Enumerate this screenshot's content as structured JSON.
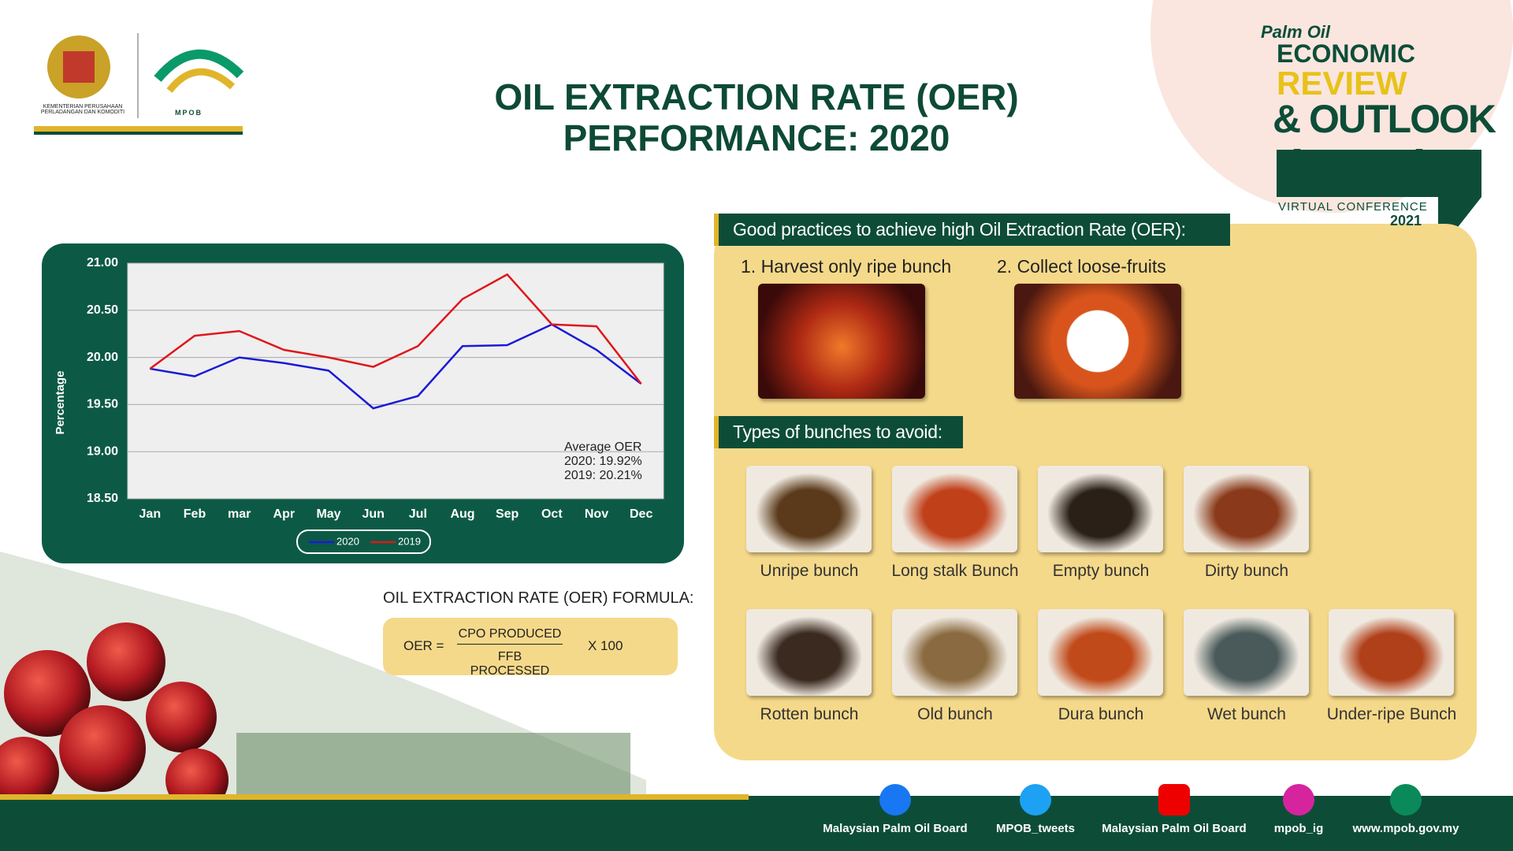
{
  "header": {
    "ministry": "KEMENTERIAN PERUSAHAAN PERLADANGAN DAN KOMODITI",
    "mpob": "MPOB",
    "title": [
      "OIL EXTRACTION RATE (OER)",
      "PERFORMANCE: 2020"
    ]
  },
  "conference": {
    "tagline": "Palm Oil",
    "line1": "ECONOMIC",
    "line2": "REVIEW",
    "line3": "& OUTLOOK",
    "line4": "(R&O)",
    "line5": "VIRTUAL CONFERENCE",
    "year": "2021"
  },
  "chart_data": {
    "type": "line",
    "y_label": "Percentage",
    "categories": [
      "Jan",
      "Feb",
      "mar",
      "Apr",
      "May",
      "Jun",
      "Jul",
      "Aug",
      "Sep",
      "Oct",
      "Nov",
      "Dec"
    ],
    "series": [
      {
        "name": "2020",
        "color": "#1a1ad8",
        "values": [
          19.88,
          19.8,
          20.0,
          19.94,
          19.86,
          19.46,
          19.59,
          20.12,
          20.13,
          20.35,
          20.08,
          19.72
        ]
      },
      {
        "name": "2019",
        "color": "#e0161b",
        "values": [
          19.88,
          20.23,
          20.28,
          20.08,
          20.0,
          19.9,
          20.12,
          20.62,
          20.88,
          20.35,
          20.33,
          19.72
        ]
      }
    ],
    "ylim": [
      18.5,
      21.0
    ],
    "yticks": [
      {
        "value": 18.5,
        "label": "18.50"
      },
      {
        "value": 19,
        "label": "19.00"
      },
      {
        "value": 19.5,
        "label": "19.50"
      },
      {
        "value": 20,
        "label": "20.00"
      },
      {
        "value": 20.5,
        "label": "20.50"
      },
      {
        "value": 21,
        "label": "21.00"
      }
    ],
    "grid": true,
    "annotation": [
      "Average OER",
      "2020: 19.92%",
      "2019: 20.21%"
    ]
  },
  "formula": {
    "heading": "OIL EXTRACTION RATE (OER) FORMULA:",
    "lhs": "OER =",
    "numerator": "CPO PRODUCED",
    "denominator": "FFB PROCESSED",
    "multiplier": "X 100"
  },
  "practices": {
    "heading": "Good practices to achieve high Oil Extraction Rate (OER):",
    "items": [
      "1. Harvest only ripe bunch",
      "2. Collect loose-fruits"
    ]
  },
  "avoid": {
    "heading": "Types of bunches to avoid:",
    "items": [
      "Unripe bunch",
      "Long stalk Bunch",
      "Empty bunch",
      "Dirty bunch",
      "Rotten bunch",
      "Old bunch",
      "Dura bunch",
      "Wet bunch",
      "Under-ripe Bunch"
    ]
  },
  "footer": {
    "links": [
      "Malaysian Palm Oil Board",
      "MPOB_tweets",
      "Malaysian Palm Oil Board",
      "mpob_ig",
      "www.mpob.gov.my"
    ]
  }
}
